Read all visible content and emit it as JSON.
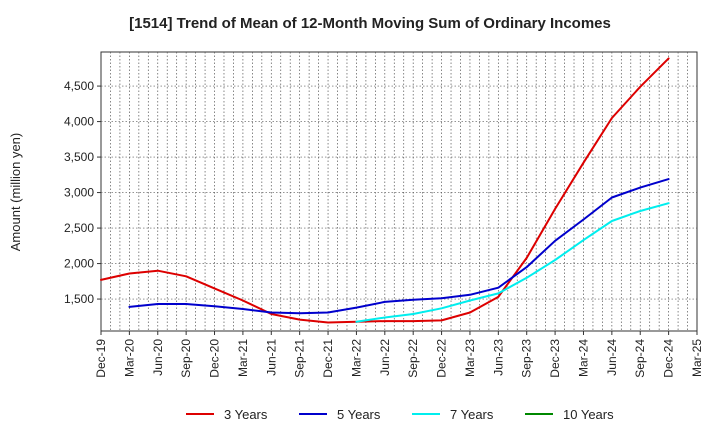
{
  "chart_data": {
    "type": "line",
    "title": "[1514]  Trend of Mean of 12-Month Moving Sum of Ordinary Incomes",
    "xlabel": "",
    "ylabel": "Amount (million yen)",
    "ylim": [
      1050,
      4980
    ],
    "yticks": [
      1500,
      2000,
      2500,
      3000,
      3500,
      4000,
      4500
    ],
    "ytick_labels": [
      "1,500",
      "2,000",
      "2,500",
      "3,000",
      "3,500",
      "4,000",
      "4,500"
    ],
    "categories": [
      "Dec-19",
      "Mar-20",
      "Jun-20",
      "Sep-20",
      "Dec-20",
      "Mar-21",
      "Jun-21",
      "Sep-21",
      "Dec-21",
      "Mar-22",
      "Jun-22",
      "Sep-22",
      "Dec-22",
      "Mar-23",
      "Jun-23",
      "Sep-23",
      "Dec-23",
      "Mar-24",
      "Jun-24",
      "Sep-24",
      "Dec-24",
      "Mar-25"
    ],
    "grid": true,
    "legend_position": "bottom",
    "series": [
      {
        "name": "3 Years",
        "color": "#dd0000",
        "values": [
          1770,
          1860,
          1900,
          1820,
          1650,
          1480,
          1290,
          1210,
          1170,
          1180,
          1190,
          1190,
          1200,
          1310,
          1530,
          2080,
          2770,
          3420,
          4050,
          4490,
          4890,
          null
        ]
      },
      {
        "name": "5 Years",
        "color": "#0000cc",
        "values": [
          null,
          1390,
          1430,
          1430,
          1400,
          1360,
          1310,
          1300,
          1310,
          1380,
          1460,
          1490,
          1510,
          1560,
          1660,
          1950,
          2320,
          2620,
          2930,
          3070,
          3190,
          null
        ]
      },
      {
        "name": "7 Years",
        "color": "#00eeee",
        "values": [
          null,
          null,
          null,
          null,
          null,
          null,
          null,
          null,
          null,
          1180,
          1240,
          1290,
          1370,
          1480,
          1580,
          1800,
          2050,
          2330,
          2600,
          2740,
          2850,
          null
        ]
      },
      {
        "name": "10 Years",
        "color": "#008800",
        "values": [
          null,
          null,
          null,
          null,
          null,
          null,
          null,
          null,
          null,
          null,
          null,
          null,
          null,
          null,
          null,
          null,
          null,
          null,
          null,
          null,
          null,
          null
        ]
      }
    ]
  }
}
